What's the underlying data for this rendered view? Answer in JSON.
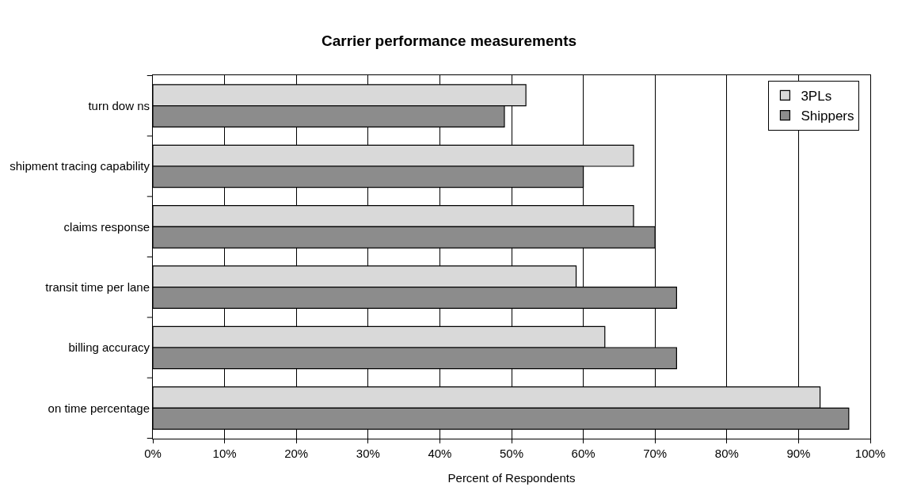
{
  "chart_data": {
    "type": "bar",
    "orientation": "horizontal",
    "title": "Carrier performance measurements",
    "xlabel": "Percent of Respondents",
    "categories": [
      "turn dow ns",
      "shipment tracing capability",
      "claims response",
      "transit time per lane",
      "billing accuracy",
      "on time percentage"
    ],
    "series": [
      {
        "name": "3PLs",
        "color": "#d9d9d9",
        "values": [
          52,
          67,
          67,
          59,
          63,
          93
        ]
      },
      {
        "name": "Shippers",
        "color": "#8c8c8c",
        "values": [
          49,
          60,
          70,
          73,
          73,
          97
        ]
      }
    ],
    "xlim": [
      0,
      100
    ],
    "xticks": [
      {
        "value": 0,
        "label": "0%"
      },
      {
        "value": 10,
        "label": "10%"
      },
      {
        "value": 20,
        "label": "20%"
      },
      {
        "value": 30,
        "label": "30%"
      },
      {
        "value": 40,
        "label": "40%"
      },
      {
        "value": 50,
        "label": "50%"
      },
      {
        "value": 60,
        "label": "60%"
      },
      {
        "value": 70,
        "label": "70%"
      },
      {
        "value": 80,
        "label": "80%"
      },
      {
        "value": 90,
        "label": "90%"
      },
      {
        "value": 100,
        "label": "100%"
      }
    ],
    "grid": "x",
    "legend": "top right"
  }
}
